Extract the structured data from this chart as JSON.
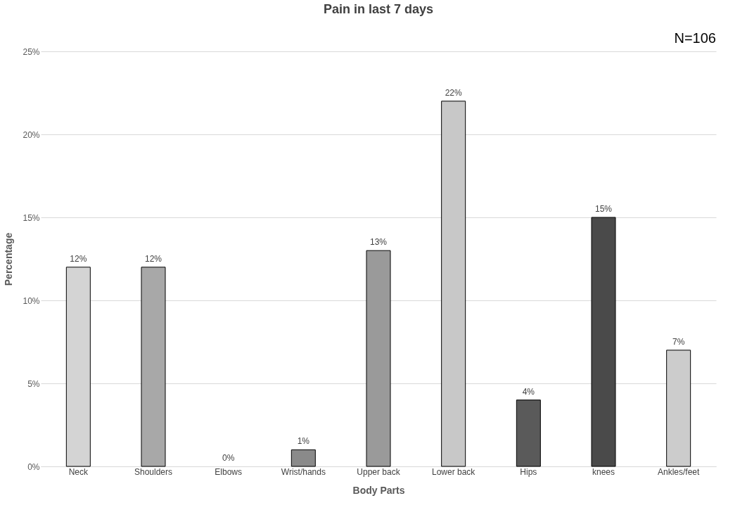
{
  "chart_data": {
    "type": "bar",
    "title": "Pain in last 7 days",
    "xlabel": "Body Parts",
    "ylabel": "Percentage",
    "annotations": [
      "N=106"
    ],
    "categories": [
      "Neck",
      "Shoulders",
      "Elbows",
      "Wrist/hands",
      "Upper back",
      "Lower back",
      "Hips",
      "knees",
      "Ankles/feet"
    ],
    "values": [
      12,
      12,
      0,
      1,
      13,
      22,
      4,
      15,
      7
    ],
    "value_labels": [
      "12%",
      "12%",
      "0%",
      "1%",
      "13%",
      "22%",
      "4%",
      "15%",
      "7%"
    ],
    "colors": [
      "#d4d4d4",
      "#a8a8a8",
      "#ffffff",
      "#8a8a8a",
      "#9a9a9a",
      "#c8c8c8",
      "#5a5a5a",
      "#4a4a4a",
      "#cccccc"
    ],
    "ylim": [
      0,
      25
    ],
    "yticks": [
      {
        "value": 0,
        "label": "0%"
      },
      {
        "value": 5,
        "label": "5%"
      },
      {
        "value": 10,
        "label": "10%"
      },
      {
        "value": 15,
        "label": "15%"
      },
      {
        "value": 20,
        "label": "20%"
      },
      {
        "value": 25,
        "label": "25%"
      }
    ],
    "grid": "y",
    "legend": false
  }
}
